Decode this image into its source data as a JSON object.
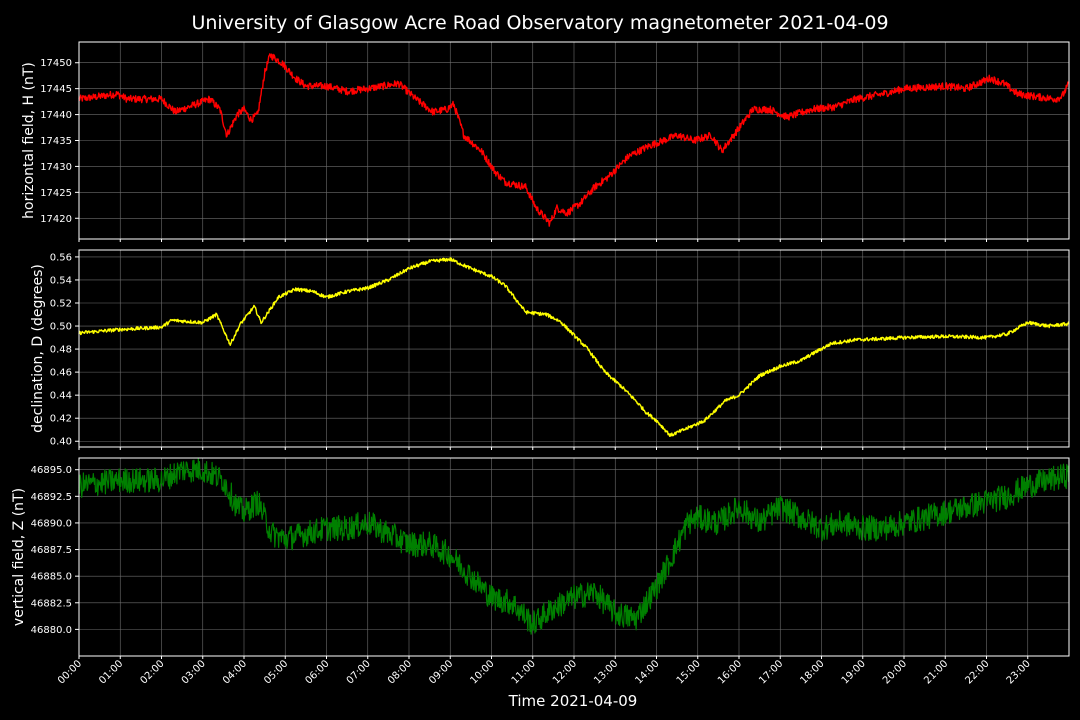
{
  "chart_data": {
    "type": "line",
    "title": "University of Glasgow Acre Road Observatory magnetometer 2021-04-09",
    "xlabel": "Time 2021-04-09",
    "background": "#000000",
    "grid": true,
    "grid_color": "#6e6e6e",
    "x_ticks": [
      "00:00",
      "01:00",
      "02:00",
      "03:00",
      "04:00",
      "05:00",
      "06:00",
      "07:00",
      "08:00",
      "09:00",
      "10:00",
      "11:00",
      "12:00",
      "13:00",
      "14:00",
      "15:00",
      "16:00",
      "17:00",
      "18:00",
      "19:00",
      "20:00",
      "21:00",
      "22:00",
      "23:00"
    ],
    "xlim": [
      "00:00",
      "24:00"
    ],
    "panels": [
      {
        "ylabel": "horizontal field, H (nT)",
        "color": "#ff0000",
        "ylim": [
          17416,
          17454
        ],
        "y_ticks": [
          "17420",
          "17425",
          "17430",
          "17435",
          "17440",
          "17445",
          "17450"
        ],
        "noise": 0.7,
        "points": [
          [
            "00:00",
            17443
          ],
          [
            "00:30",
            17443.5
          ],
          [
            "00:55",
            17444
          ],
          [
            "01:10",
            17443
          ],
          [
            "02:00",
            17443
          ],
          [
            "02:20",
            17440.5
          ],
          [
            "02:50",
            17442
          ],
          [
            "03:10",
            17443
          ],
          [
            "03:25",
            17441
          ],
          [
            "03:35",
            17436
          ],
          [
            "03:50",
            17440
          ],
          [
            "04:00",
            17441
          ],
          [
            "04:10",
            17439
          ],
          [
            "04:20",
            17440
          ],
          [
            "04:30",
            17448
          ],
          [
            "04:38",
            17451.5
          ],
          [
            "04:55",
            17450
          ],
          [
            "05:15",
            17447
          ],
          [
            "05:30",
            17445.5
          ],
          [
            "06:00",
            17445.5
          ],
          [
            "06:30",
            17444.5
          ],
          [
            "07:00",
            17445
          ],
          [
            "07:45",
            17446
          ],
          [
            "08:10",
            17443
          ],
          [
            "08:35",
            17440.5
          ],
          [
            "08:55",
            17441
          ],
          [
            "09:05",
            17442
          ],
          [
            "09:20",
            17436
          ],
          [
            "09:45",
            17433
          ],
          [
            "10:05",
            17429
          ],
          [
            "10:20",
            17427
          ],
          [
            "10:50",
            17426
          ],
          [
            "11:05",
            17422
          ],
          [
            "11:25",
            17419
          ],
          [
            "11:35",
            17422
          ],
          [
            "11:50",
            17421
          ],
          [
            "12:10",
            17423
          ],
          [
            "12:30",
            17426
          ],
          [
            "12:50",
            17428
          ],
          [
            "13:20",
            17432
          ],
          [
            "13:50",
            17434
          ],
          [
            "14:30",
            17436
          ],
          [
            "14:55",
            17435
          ],
          [
            "15:20",
            17436
          ],
          [
            "15:35",
            17433
          ],
          [
            "15:55",
            17436.5
          ],
          [
            "16:20",
            17441
          ],
          [
            "16:45",
            17441
          ],
          [
            "17:10",
            17439.5
          ],
          [
            "17:45",
            17441
          ],
          [
            "18:20",
            17441.5
          ],
          [
            "18:50",
            17443
          ],
          [
            "19:30",
            17444
          ],
          [
            "20:00",
            17445
          ],
          [
            "21:00",
            17445.5
          ],
          [
            "21:30",
            17445
          ],
          [
            "22:05",
            17447
          ],
          [
            "22:25",
            17446
          ],
          [
            "22:45",
            17444
          ],
          [
            "23:10",
            17443.5
          ],
          [
            "23:40",
            17443
          ],
          [
            "23:50",
            17443.5
          ],
          [
            "24:00",
            17446
          ]
        ]
      },
      {
        "ylabel": "declination, D (degrees)",
        "color": "#ffff00",
        "ylim": [
          0.395,
          0.566
        ],
        "y_ticks": [
          "0.40",
          "0.42",
          "0.44",
          "0.46",
          "0.48",
          "0.50",
          "0.52",
          "0.54",
          "0.56"
        ],
        "noise": 0.0015,
        "points": [
          [
            "00:00",
            0.494
          ],
          [
            "01:00",
            0.497
          ],
          [
            "02:00",
            0.499
          ],
          [
            "02:15",
            0.505
          ],
          [
            "03:00",
            0.503
          ],
          [
            "03:20",
            0.51
          ],
          [
            "03:40",
            0.484
          ],
          [
            "03:55",
            0.502
          ],
          [
            "04:15",
            0.517
          ],
          [
            "04:25",
            0.503
          ],
          [
            "04:50",
            0.525
          ],
          [
            "05:15",
            0.532
          ],
          [
            "05:40",
            0.53
          ],
          [
            "06:00",
            0.525
          ],
          [
            "06:30",
            0.53
          ],
          [
            "07:00",
            0.533
          ],
          [
            "07:30",
            0.54
          ],
          [
            "08:00",
            0.55
          ],
          [
            "08:30",
            0.556
          ],
          [
            "09:00",
            0.558
          ],
          [
            "09:30",
            0.55
          ],
          [
            "10:00",
            0.543
          ],
          [
            "10:20",
            0.535
          ],
          [
            "10:50",
            0.512
          ],
          [
            "11:20",
            0.51
          ],
          [
            "11:40",
            0.504
          ],
          [
            "12:00",
            0.492
          ],
          [
            "12:20",
            0.48
          ],
          [
            "12:45",
            0.46
          ],
          [
            "13:10",
            0.447
          ],
          [
            "13:30",
            0.435
          ],
          [
            "13:45",
            0.425
          ],
          [
            "14:00",
            0.418
          ],
          [
            "14:20",
            0.405
          ],
          [
            "14:40",
            0.41
          ],
          [
            "15:10",
            0.418
          ],
          [
            "15:40",
            0.435
          ],
          [
            "16:00",
            0.44
          ],
          [
            "16:30",
            0.457
          ],
          [
            "17:00",
            0.465
          ],
          [
            "17:30",
            0.47
          ],
          [
            "17:50",
            0.477
          ],
          [
            "18:15",
            0.485
          ],
          [
            "18:50",
            0.488
          ],
          [
            "19:30",
            0.489
          ],
          [
            "20:00",
            0.49
          ],
          [
            "21:00",
            0.491
          ],
          [
            "22:00",
            0.49
          ],
          [
            "22:30",
            0.493
          ],
          [
            "23:00",
            0.503
          ],
          [
            "23:30",
            0.5
          ],
          [
            "24:00",
            0.502
          ]
        ]
      },
      {
        "ylabel": "vertical field, Z (nT)",
        "color": "#008000",
        "ylim": [
          46877.5,
          46896.1
        ],
        "y_ticks": [
          "46880.0",
          "46882.5",
          "46885.0",
          "46887.5",
          "46890.0",
          "46892.5",
          "46895.0"
        ],
        "noise": 1.2,
        "points": [
          [
            "00:00",
            46893.5
          ],
          [
            "01:00",
            46894
          ],
          [
            "02:00",
            46894
          ],
          [
            "02:30",
            46895
          ],
          [
            "03:00",
            46895
          ],
          [
            "03:30",
            46894
          ],
          [
            "03:50",
            46891.5
          ],
          [
            "04:00",
            46891
          ],
          [
            "04:20",
            46892
          ],
          [
            "04:40",
            46889
          ],
          [
            "05:00",
            46888.5
          ],
          [
            "05:30",
            46889
          ],
          [
            "06:00",
            46889.5
          ],
          [
            "06:30",
            46889.5
          ],
          [
            "07:00",
            46890
          ],
          [
            "07:30",
            46889
          ],
          [
            "08:00",
            46888
          ],
          [
            "08:30",
            46888
          ],
          [
            "09:00",
            46887
          ],
          [
            "09:30",
            46885
          ],
          [
            "10:00",
            46883
          ],
          [
            "10:30",
            46882.5
          ],
          [
            "11:00",
            46880.5
          ],
          [
            "11:30",
            46882
          ],
          [
            "12:00",
            46883
          ],
          [
            "12:30",
            46883.5
          ],
          [
            "13:00",
            46881.5
          ],
          [
            "13:30",
            46881
          ],
          [
            "14:00",
            46884
          ],
          [
            "14:20",
            46886.5
          ],
          [
            "14:45",
            46890
          ],
          [
            "15:00",
            46890.5
          ],
          [
            "15:30",
            46890
          ],
          [
            "16:00",
            46891.5
          ],
          [
            "16:30",
            46890
          ],
          [
            "17:00",
            46891.5
          ],
          [
            "17:30",
            46890.5
          ],
          [
            "18:00",
            46889.5
          ],
          [
            "18:30",
            46890
          ],
          [
            "19:00",
            46889.5
          ],
          [
            "19:30",
            46889.5
          ],
          [
            "20:00",
            46890
          ],
          [
            "20:30",
            46890.5
          ],
          [
            "21:00",
            46891
          ],
          [
            "21:30",
            46891.5
          ],
          [
            "22:00",
            46892
          ],
          [
            "22:30",
            46892.5
          ],
          [
            "23:00",
            46893.5
          ],
          [
            "23:30",
            46894
          ],
          [
            "24:00",
            46894.5
          ]
        ]
      }
    ]
  }
}
